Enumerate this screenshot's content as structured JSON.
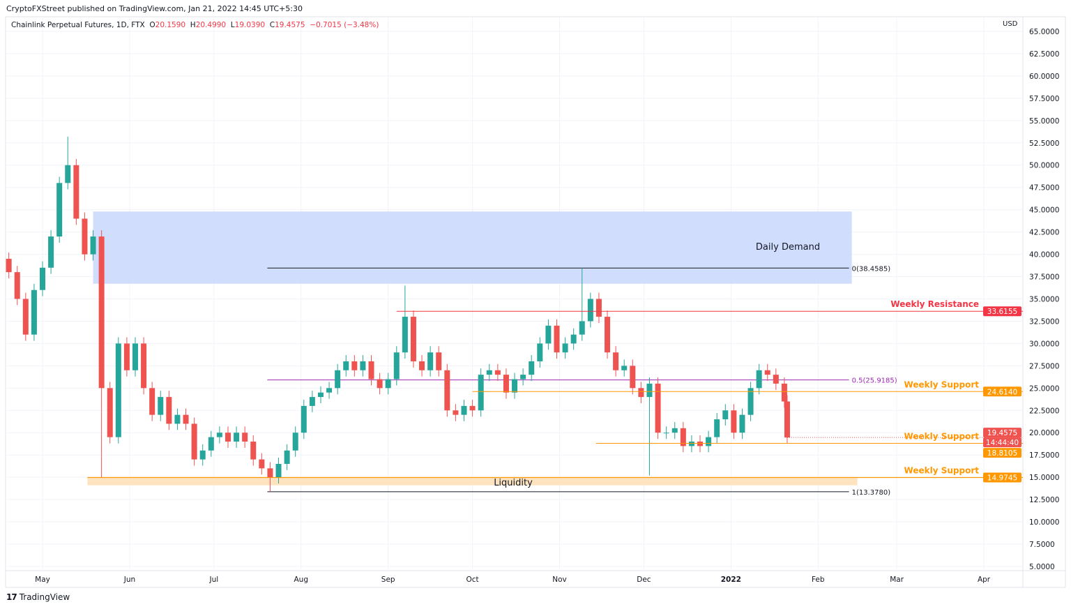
{
  "header": {
    "published": "CryptoFXStreet published on TradingView.com, Jan 21, 2022 14:45 UTC+5:30",
    "symbol": "Chainlink Perpetual Futures, 1D, FTX",
    "o_label": "O",
    "o": "20.1590",
    "h_label": "H",
    "h": "20.4990",
    "l_label": "L",
    "l": "19.0390",
    "c_label": "C",
    "c": "19.4575",
    "change": "−0.7015 (−3.48%)"
  },
  "currency": "USD",
  "footer": {
    "brand": "TradingView",
    "logo": "17"
  },
  "colors": {
    "up": "#26a69a",
    "down": "#ef5350",
    "demand": "#c9d7fb",
    "liquidity": "#fde3c0",
    "resistance": "#f23645",
    "support": "#ff9800",
    "fib_mid": "#9c27b0"
  },
  "chart_data": {
    "type": "candlestick",
    "title": "Chainlink Perpetual Futures, 1D, FTX",
    "ylim": [
      5,
      65
    ],
    "y_ticks": [
      "5.0000",
      "7.5000",
      "10.0000",
      "12.5000",
      "15.0000",
      "17.5000",
      "20.0000",
      "22.5000",
      "25.0000",
      "27.5000",
      "30.0000",
      "32.5000",
      "35.0000",
      "37.5000",
      "40.0000",
      "42.5000",
      "45.0000",
      "47.5000",
      "50.0000",
      "52.5000",
      "55.0000",
      "57.5000",
      "60.0000",
      "62.5000",
      "65.0000"
    ],
    "x_ticks": [
      {
        "label": "May",
        "date": "2021-05-01"
      },
      {
        "label": "Jun",
        "date": "2021-06-01"
      },
      {
        "label": "Jul",
        "date": "2021-07-01"
      },
      {
        "label": "Aug",
        "date": "2021-08-01"
      },
      {
        "label": "Sep",
        "date": "2021-09-01"
      },
      {
        "label": "Oct",
        "date": "2021-10-01"
      },
      {
        "label": "Nov",
        "date": "2021-11-01"
      },
      {
        "label": "Dec",
        "date": "2021-12-01"
      },
      {
        "label": "2022",
        "date": "2022-01-01"
      },
      {
        "label": "Feb",
        "date": "2022-02-01"
      },
      {
        "label": "Mar",
        "date": "2022-03-01"
      },
      {
        "label": "Apr",
        "date": "2022-04-01"
      }
    ],
    "dates": [
      "2021-04-19",
      "2021-04-22",
      "2021-04-25",
      "2021-04-28",
      "2021-05-01",
      "2021-05-04",
      "2021-05-07",
      "2021-05-10",
      "2021-05-13",
      "2021-05-16",
      "2021-05-19",
      "2021-05-22",
      "2021-05-25",
      "2021-05-28",
      "2021-05-31",
      "2021-06-03",
      "2021-06-06",
      "2021-06-09",
      "2021-06-12",
      "2021-06-15",
      "2021-06-18",
      "2021-06-21",
      "2021-06-24",
      "2021-06-27",
      "2021-06-30",
      "2021-07-03",
      "2021-07-06",
      "2021-07-09",
      "2021-07-12",
      "2021-07-15",
      "2021-07-18",
      "2021-07-21",
      "2021-07-24",
      "2021-07-27",
      "2021-07-30",
      "2021-08-02",
      "2021-08-05",
      "2021-08-08",
      "2021-08-11",
      "2021-08-14",
      "2021-08-17",
      "2021-08-20",
      "2021-08-23",
      "2021-08-26",
      "2021-08-29",
      "2021-09-01",
      "2021-09-04",
      "2021-09-07",
      "2021-09-10",
      "2021-09-13",
      "2021-09-16",
      "2021-09-19",
      "2021-09-22",
      "2021-09-25",
      "2021-09-28",
      "2021-10-01",
      "2021-10-04",
      "2021-10-07",
      "2021-10-10",
      "2021-10-13",
      "2021-10-16",
      "2021-10-19",
      "2021-10-22",
      "2021-10-25",
      "2021-10-28",
      "2021-10-31",
      "2021-11-03",
      "2021-11-06",
      "2021-11-09",
      "2021-11-12",
      "2021-11-15",
      "2021-11-18",
      "2021-11-21",
      "2021-11-24",
      "2021-11-27",
      "2021-11-30",
      "2021-12-03",
      "2021-12-06",
      "2021-12-09",
      "2021-12-12",
      "2021-12-15",
      "2021-12-18",
      "2021-12-21",
      "2021-12-24",
      "2021-12-27",
      "2021-12-30",
      "2022-01-02",
      "2022-01-05",
      "2022-01-08",
      "2022-01-11",
      "2022-01-14",
      "2022-01-17",
      "2022-01-20",
      "2022-01-21"
    ],
    "close": [
      38,
      35,
      31,
      36,
      38.5,
      42,
      48,
      50,
      44,
      40,
      42,
      25,
      19.5,
      30,
      27,
      30,
      25,
      22,
      24,
      21,
      22,
      21,
      17,
      18,
      19.5,
      20,
      19,
      20,
      19,
      17,
      16,
      15,
      16.5,
      18,
      20,
      23,
      24,
      24.5,
      25,
      27,
      28,
      27,
      28,
      26,
      25,
      26,
      29,
      33,
      28,
      27,
      29,
      27,
      22.5,
      22,
      23,
      22.5,
      26.5,
      27,
      26.5,
      24.5,
      26,
      26.5,
      28,
      30,
      32,
      29,
      30,
      31,
      32.5,
      35,
      33,
      29,
      27,
      27.5,
      25,
      24,
      25.5,
      20,
      20,
      20.5,
      18.5,
      19,
      18.5,
      19.5,
      21.5,
      22.5,
      20,
      22,
      25,
      27,
      26.5,
      25.5,
      23.5,
      19.4575
    ],
    "extremes": [
      {
        "date": "2021-05-10",
        "high": 53.2
      },
      {
        "date": "2021-05-23",
        "low": 15.0
      },
      {
        "date": "2021-07-20",
        "low": 13.378
      },
      {
        "date": "2021-09-06",
        "high": 36.5
      },
      {
        "date": "2021-11-10",
        "high": 38.4585
      },
      {
        "date": "2021-12-04",
        "low": 15.2
      }
    ],
    "zones": [
      {
        "name": "Daily Demand",
        "top": 44.8,
        "bottom": 36.7,
        "from": "2021-05-19",
        "to": "2022-02-13"
      },
      {
        "name": "Liquidity",
        "top": 14.9745,
        "bottom": 14.1,
        "from": "2021-05-17",
        "to": "2022-02-15"
      }
    ],
    "levels": [
      {
        "name": "Weekly Resistance",
        "price": 33.6155,
        "label": "33.6155",
        "from": "2021-09-04",
        "kind": "resistance"
      },
      {
        "name": "Weekly Support",
        "price": 24.614,
        "label": "24.6140",
        "from": "2021-10-01",
        "kind": "support"
      },
      {
        "name": "Weekly Support",
        "price": 18.8105,
        "label": "18.8105",
        "from": "2021-11-14",
        "kind": "support"
      },
      {
        "name": "Weekly Support",
        "price": 14.9745,
        "label": "14.9745",
        "from": "2021-05-17",
        "kind": "support"
      }
    ],
    "fib": [
      {
        "label": "0(38.4585)",
        "price": 38.4585
      },
      {
        "label": "0.5(25.9185)",
        "price": 25.9185
      },
      {
        "label": "1(13.3780)",
        "price": 13.378
      }
    ],
    "fib_from": "2021-07-20",
    "fib_to": "2022-02-12",
    "last_price": {
      "value": "19.4575",
      "countdown": "14:44:40",
      "price": 19.4575
    }
  }
}
